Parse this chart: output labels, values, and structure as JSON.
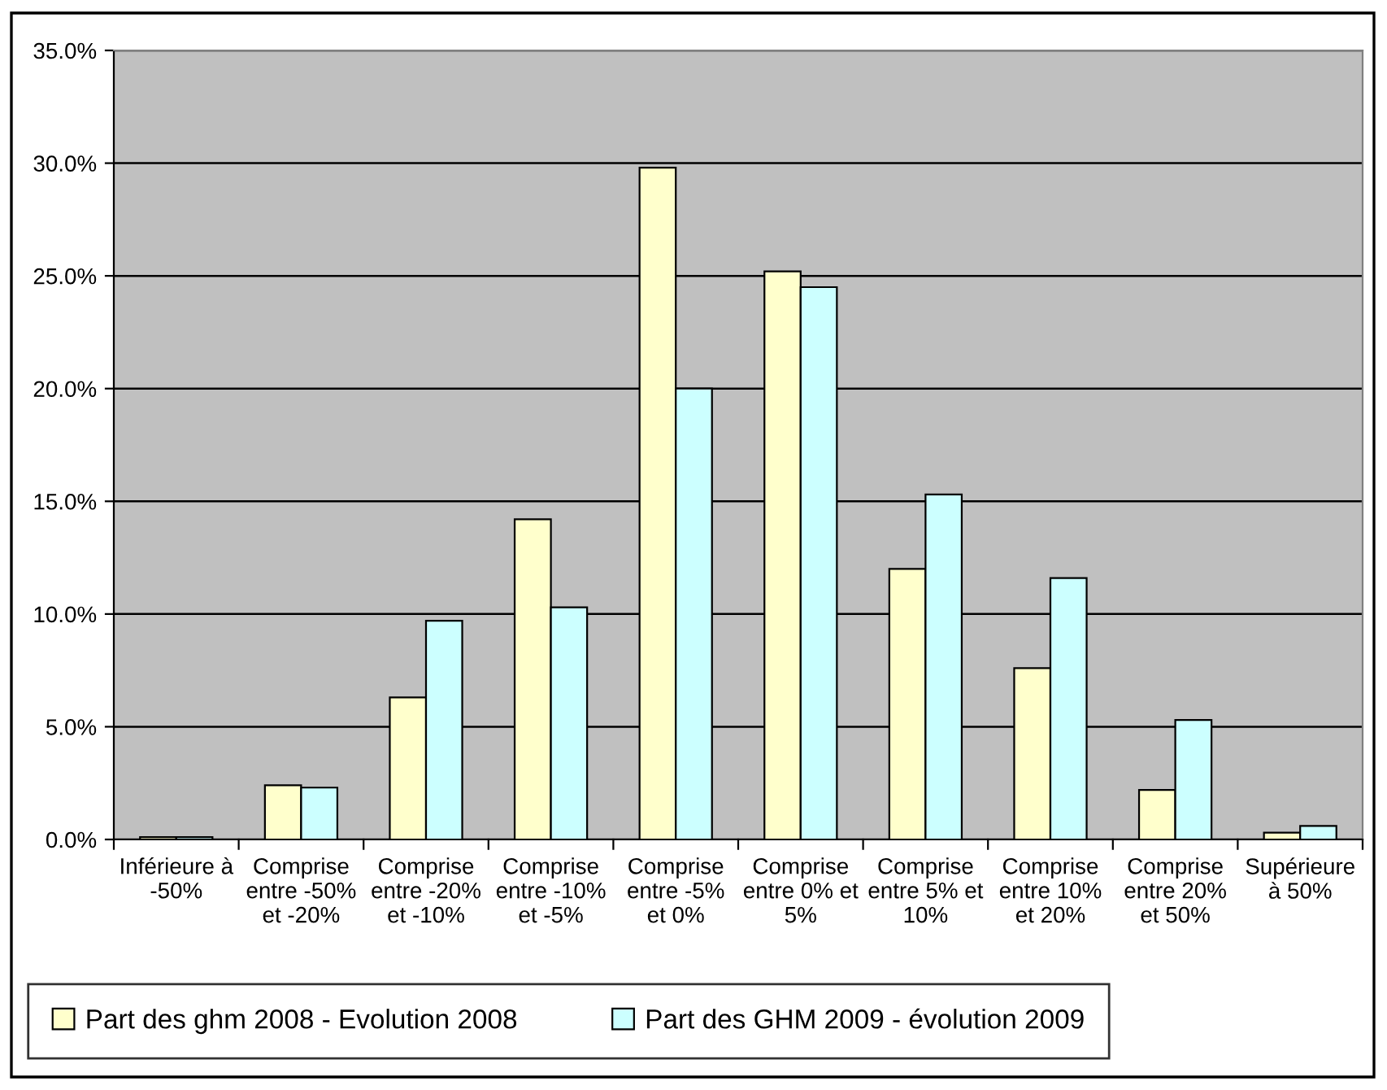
{
  "chart_data": {
    "type": "bar",
    "categories": [
      "Inférieure à\n-50%",
      "Comprise\nentre -50%\net -20%",
      "Comprise\nentre -20%\net -10%",
      "Comprise\nentre -10%\net -5%",
      "Comprise\nentre -5%\net 0%",
      "Comprise\nentre 0% et\n5%",
      "Comprise\nentre 5% et\n10%",
      "Comprise\nentre 10%\net 20%",
      "Comprise\nentre 20%\net 50%",
      "Supérieure\nà 50%"
    ],
    "series": [
      {
        "name": "Part des ghm 2008 - Evolution 2008",
        "color": "#ffffcc",
        "values": [
          0.1,
          2.4,
          6.3,
          14.2,
          29.8,
          25.2,
          12.0,
          7.6,
          2.2,
          0.3
        ]
      },
      {
        "name": "Part des GHM 2009 - évolution 2009",
        "color": "#ccffff",
        "values": [
          0.1,
          2.3,
          9.7,
          10.3,
          20.0,
          24.5,
          15.3,
          11.6,
          5.3,
          0.6
        ]
      }
    ],
    "ylim": [
      0,
      35
    ],
    "yticks": [
      {
        "value": 0,
        "label": "0.0%"
      },
      {
        "value": 5,
        "label": "5.0%"
      },
      {
        "value": 10,
        "label": "10.0%"
      },
      {
        "value": 15,
        "label": "15.0%"
      },
      {
        "value": 20,
        "label": "20.0%"
      },
      {
        "value": 25,
        "label": "25.0%"
      },
      {
        "value": 30,
        "label": "30.0%"
      },
      {
        "value": 35,
        "label": "35.0%"
      }
    ],
    "grid": "y",
    "legend": "bottom"
  }
}
